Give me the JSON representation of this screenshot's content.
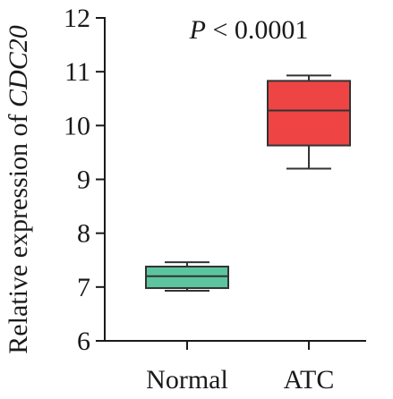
{
  "chart_data": {
    "type": "box",
    "categories": [
      "Normal",
      "ATC"
    ],
    "series": [
      {
        "category": "Normal",
        "min": 6.93,
        "q1": 6.98,
        "median": 7.2,
        "q3": 7.38,
        "max": 7.46,
        "color": "#5cc49e"
      },
      {
        "category": "ATC",
        "min": 9.2,
        "q1": 9.63,
        "median": 10.28,
        "q3": 10.83,
        "max": 10.93,
        "color": "#ef4444"
      }
    ],
    "ylabel_prefix": "Relative expression of ",
    "ylabel_gene": "CDC20",
    "ylim": [
      6,
      12
    ],
    "yticks": [
      "6",
      "7",
      "8",
      "9",
      "10",
      "11",
      "12"
    ],
    "annotation": {
      "p_letter": "P",
      "rest": " < 0.0001"
    }
  }
}
